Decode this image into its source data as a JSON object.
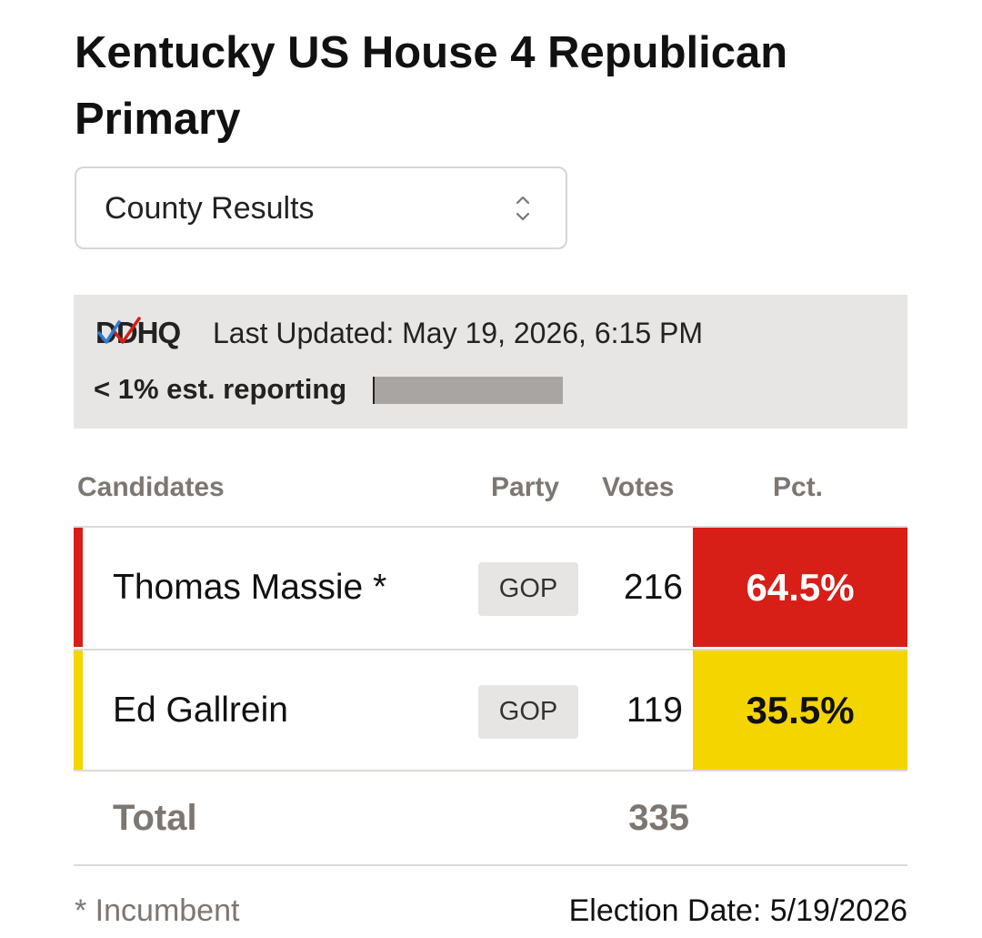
{
  "title": "Kentucky US House 4 Republican Primary",
  "selector": {
    "value": "County Results"
  },
  "status": {
    "logo_text": "DDHQ",
    "last_updated": "Last Updated: May 19, 2026, 6:15 PM",
    "reporting": "< 1% est. reporting",
    "reporting_fraction": 0.01
  },
  "table": {
    "headers": {
      "candidates": "Candidates",
      "party": "Party",
      "votes": "Votes",
      "pct": "Pct."
    },
    "rows": [
      {
        "name": "Thomas Massie *",
        "party": "GOP",
        "votes": "216",
        "pct": "64.5%",
        "color": "#d71e17",
        "pct_text_color": "#ffffff"
      },
      {
        "name": "Ed Gallrein",
        "party": "GOP",
        "votes": "119",
        "pct": "35.5%",
        "color": "#f4d500",
        "pct_text_color": "#111111"
      }
    ],
    "total_label": "Total",
    "total_votes": "335"
  },
  "footer": {
    "incumbent_note": "* Incumbent",
    "election_date": "Election Date: 5/19/2026"
  },
  "icons": {
    "selector": "chevron-up-down-icon",
    "logo": "ddhq-logo"
  }
}
